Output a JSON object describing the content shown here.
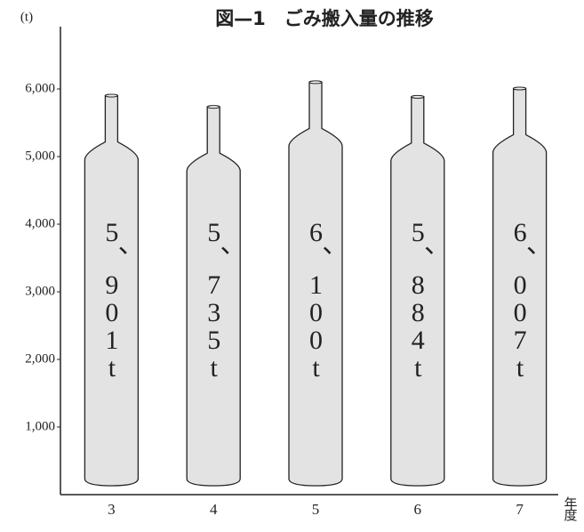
{
  "chart_data": {
    "type": "bottle",
    "title": "図—1　ごみ搬入量の推移",
    "y_label": "(t)",
    "x_label": "年度",
    "categories": [
      "3",
      "4",
      "5",
      "6",
      "7"
    ],
    "values": [
      5901,
      5735,
      6100,
      5884,
      6007
    ],
    "value_labels": [
      "5、901t",
      "5、735t",
      "6、100t",
      "5、884t",
      "6、007t"
    ],
    "color": "#e3e3e3",
    "ylim": [
      0,
      6900
    ],
    "yticks": [
      {
        "value": 1000,
        "label": "1,000"
      },
      {
        "value": 2000,
        "label": "2,000"
      },
      {
        "value": 3000,
        "label": "3,000"
      },
      {
        "value": 4000,
        "label": "4,000"
      },
      {
        "value": 5000,
        "label": "5,000"
      },
      {
        "value": 6000,
        "label": "6,000"
      }
    ]
  }
}
